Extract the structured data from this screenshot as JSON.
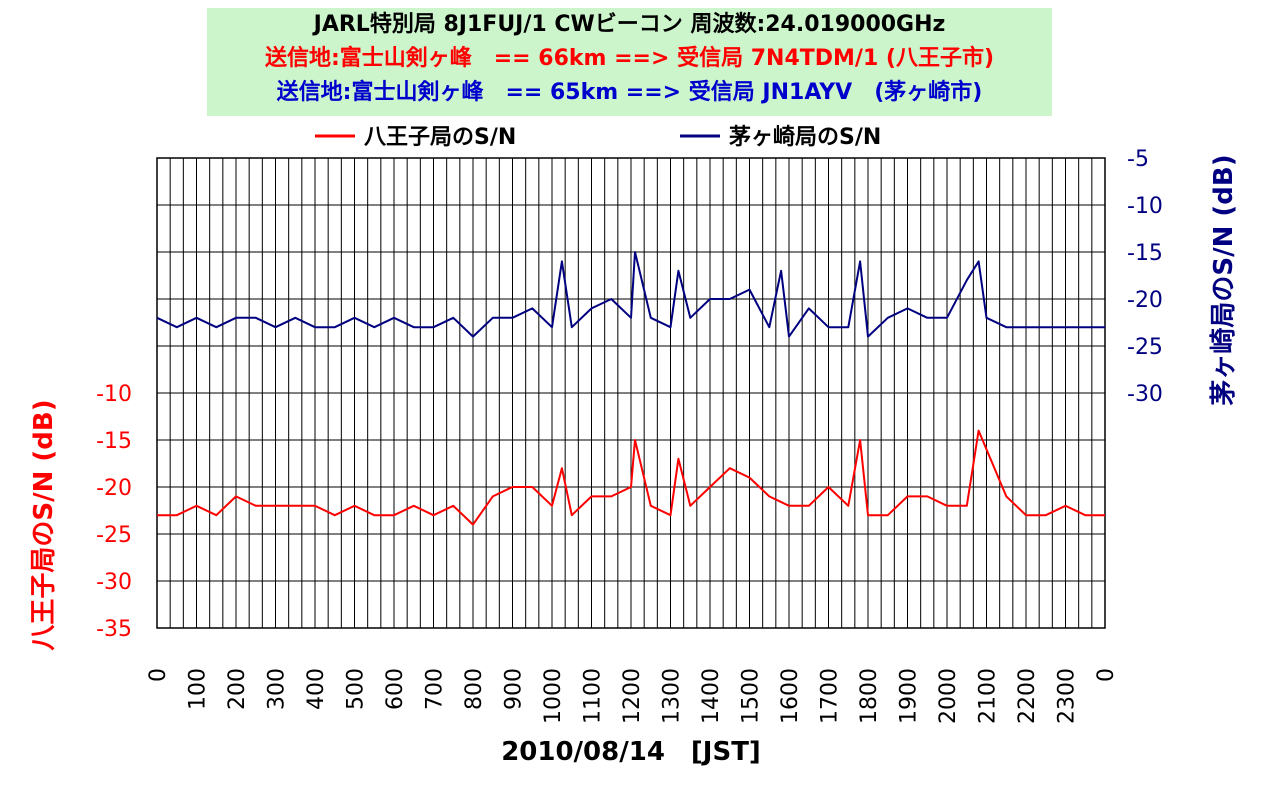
{
  "chart_data": {
    "type": "line",
    "title_lines": [
      {
        "text": "JARL特別局 8J1FUJ/1 CWビーコン 周波数:24.019000GHz",
        "color": "#000000"
      },
      {
        "text": "送信地:富士山剣ヶ峰　== 66km ==> 受信局 7N4TDM/1 (八王子市)",
        "color": "#ff0000"
      },
      {
        "text": "送信地:富士山剣ヶ峰　== 65km ==> 受信局 JN1AYV　(茅ヶ崎市)",
        "color": "#0000cc"
      }
    ],
    "xlabel": "2010/08/14　[JST]",
    "x_ticks": [
      "0",
      "100",
      "200",
      "300",
      "400",
      "500",
      "600",
      "700",
      "800",
      "900",
      "1000",
      "1100",
      "1200",
      "1300",
      "1400",
      "1500",
      "1600",
      "1700",
      "1800",
      "1900",
      "2000",
      "2100",
      "2200",
      "2300",
      "0"
    ],
    "y_left": {
      "label": "八王子局のS/N (dB)",
      "ticks": [
        -10,
        -15,
        -20,
        -25,
        -30,
        -35
      ],
      "range": [
        -35,
        15
      ],
      "color": "#ff0000"
    },
    "y_right": {
      "label": "茅ヶ崎局のS/N (dB)",
      "ticks": [
        -5,
        -10,
        -15,
        -20,
        -25,
        -30
      ],
      "range": [
        -55,
        -5
      ],
      "color": "#000080"
    },
    "grid": true,
    "legend_position": "top",
    "series": [
      {
        "name": "八王子局のS/N",
        "color": "#ff0000",
        "axis": "left",
        "x_hours": [
          0,
          0.5,
          1,
          1.5,
          2,
          2.5,
          3,
          3.5,
          4,
          4.5,
          5,
          5.5,
          6,
          6.5,
          7,
          7.5,
          8,
          8.5,
          9,
          9.5,
          10,
          10.25,
          10.5,
          11,
          11.5,
          12,
          12.1,
          12.5,
          13,
          13.2,
          13.5,
          14,
          14.5,
          15,
          15.5,
          16,
          16.5,
          17,
          17.5,
          17.8,
          18,
          18.5,
          19,
          19.5,
          20,
          20.5,
          20.8,
          21,
          21.5,
          22,
          22.5,
          23,
          23.5,
          24
        ],
        "values": [
          -23,
          -23,
          -22,
          -23,
          -21,
          -22,
          -22,
          -22,
          -22,
          -23,
          -22,
          -23,
          -23,
          -22,
          -23,
          -22,
          -24,
          -21,
          -20,
          -20,
          -22,
          -18,
          -23,
          -21,
          -21,
          -20,
          -15,
          -22,
          -23,
          -17,
          -22,
          -20,
          -18,
          -19,
          -21,
          -22,
          -22,
          -20,
          -22,
          -15,
          -23,
          -23,
          -21,
          -21,
          -22,
          -22,
          -14,
          -16,
          -21,
          -23,
          -23,
          -22,
          -23,
          -23
        ]
      },
      {
        "name": "茅ヶ崎局のS/N",
        "color": "#000080",
        "axis": "right",
        "x_hours": [
          0,
          0.5,
          1,
          1.5,
          2,
          2.5,
          3,
          3.5,
          4,
          4.5,
          5,
          5.5,
          6,
          6.5,
          7,
          7.5,
          8,
          8.5,
          9,
          9.5,
          10,
          10.25,
          10.5,
          11,
          11.5,
          12,
          12.1,
          12.5,
          13,
          13.2,
          13.5,
          14,
          14.5,
          15,
          15.5,
          15.8,
          16,
          16.5,
          17,
          17.5,
          17.8,
          18,
          18.5,
          19,
          19.5,
          20,
          20.5,
          20.8,
          21,
          21.5,
          22,
          22.5,
          23,
          23.5,
          24
        ],
        "values": [
          -22,
          -23,
          -22,
          -23,
          -22,
          -22,
          -23,
          -22,
          -23,
          -23,
          -22,
          -23,
          -22,
          -23,
          -23,
          -22,
          -24,
          -22,
          -22,
          -21,
          -23,
          -16,
          -23,
          -21,
          -20,
          -22,
          -15,
          -22,
          -23,
          -17,
          -22,
          -20,
          -20,
          -19,
          -23,
          -17,
          -24,
          -21,
          -23,
          -23,
          -16,
          -24,
          -22,
          -21,
          -22,
          -22,
          -18,
          -16,
          -22,
          -23,
          -23,
          -23,
          -23,
          -23,
          -23
        ]
      }
    ]
  }
}
